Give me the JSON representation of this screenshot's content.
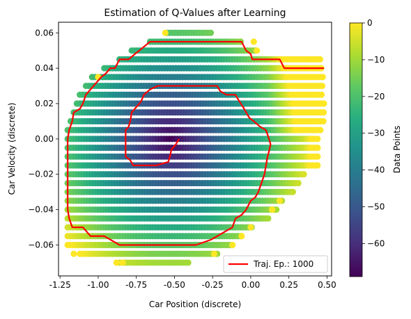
{
  "chart_data": {
    "type": "scatter",
    "title": "Estimation of Q-Values after Learning",
    "xlabel": "Car Position (discrete)",
    "ylabel": "Car Velocity (discrete)",
    "xlim": [
      -1.26,
      0.53
    ],
    "ylim": [
      -0.0775,
      0.066
    ],
    "x_ticks": [
      "-1.25",
      "-1.00",
      "-0.75",
      "-0.50",
      "-0.25",
      "0.00",
      "0.25",
      "0.50"
    ],
    "x_tick_values": [
      -1.25,
      -1.0,
      -0.75,
      -0.5,
      -0.25,
      0.0,
      0.25,
      0.5
    ],
    "y_ticks": [
      "0.06",
      "0.04",
      "0.02",
      "0.00",
      "−0.02",
      "−0.04",
      "−0.06"
    ],
    "y_tick_values": [
      0.06,
      0.04,
      0.02,
      0.0,
      -0.02,
      -0.04,
      -0.06
    ],
    "grid": false,
    "scatter": {
      "colormap": "viridis",
      "value_range": [
        -69,
        0
      ],
      "row_spacing": 0.005,
      "x_step": 0.018,
      "rows": [
        {
          "y": 0.06,
          "x_range": [
            -0.55,
            -0.25
          ]
        },
        {
          "y": 0.055,
          "x_range": [
            -0.66,
            -0.05
          ]
        },
        {
          "y": 0.05,
          "x_range": [
            -0.78,
            0.03
          ]
        },
        {
          "y": 0.045,
          "x_range": [
            -0.86,
            0.47
          ]
        },
        {
          "y": 0.04,
          "x_range": [
            -0.96,
            0.47
          ]
        },
        {
          "y": 0.035,
          "x_range": [
            -1.04,
            0.48
          ]
        },
        {
          "y": 0.03,
          "x_range": [
            -1.08,
            0.48
          ]
        },
        {
          "y": 0.025,
          "x_range": [
            -1.12,
            0.48
          ]
        },
        {
          "y": 0.02,
          "x_range": [
            -1.14,
            0.48
          ]
        },
        {
          "y": 0.015,
          "x_range": [
            -1.16,
            0.48
          ]
        },
        {
          "y": 0.01,
          "x_range": [
            -1.18,
            0.48
          ]
        },
        {
          "y": 0.005,
          "x_range": [
            -1.2,
            0.47
          ]
        },
        {
          "y": 0.0,
          "x_range": [
            -1.2,
            0.44
          ]
        },
        {
          "y": -0.005,
          "x_range": [
            -1.2,
            0.44
          ]
        },
        {
          "y": -0.01,
          "x_range": [
            -1.2,
            0.44
          ]
        },
        {
          "y": -0.015,
          "x_range": [
            -1.2,
            0.44
          ]
        },
        {
          "y": -0.02,
          "x_range": [
            -1.2,
            0.36
          ]
        },
        {
          "y": -0.025,
          "x_range": [
            -1.2,
            0.32
          ]
        },
        {
          "y": -0.03,
          "x_range": [
            -1.2,
            0.28
          ]
        },
        {
          "y": -0.035,
          "x_range": [
            -1.2,
            0.22
          ]
        },
        {
          "y": -0.04,
          "x_range": [
            -1.2,
            0.18
          ]
        },
        {
          "y": -0.045,
          "x_range": [
            -1.2,
            0.12
          ]
        },
        {
          "y": -0.05,
          "x_range": [
            -1.2,
            0.02
          ]
        },
        {
          "y": -0.055,
          "x_range": [
            -1.2,
            -0.06
          ]
        },
        {
          "y": -0.06,
          "x_range": [
            -1.2,
            -0.12
          ]
        },
        {
          "y": -0.065,
          "x_range": [
            -1.12,
            -0.22
          ]
        },
        {
          "y": -0.07,
          "x_range": [
            -0.86,
            -0.4
          ]
        }
      ],
      "edge_points": [
        {
          "x": -0.56,
          "y": 0.06
        },
        {
          "x": 0.02,
          "y": 0.055
        },
        {
          "x": 0.04,
          "y": 0.05
        },
        {
          "x": 0.38,
          "y": 0.045
        },
        {
          "x": -1.0,
          "y": 0.035
        },
        {
          "x": 0.19,
          "y": -0.035
        },
        {
          "x": 0.14,
          "y": -0.04
        },
        {
          "x": 0.0,
          "y": -0.05
        },
        {
          "x": -0.06,
          "y": -0.055
        },
        {
          "x": -0.12,
          "y": -0.06
        },
        {
          "x": -0.24,
          "y": -0.065
        },
        {
          "x": -1.16,
          "y": -0.065
        },
        {
          "x": -0.88,
          "y": -0.07
        },
        {
          "x": -0.84,
          "y": -0.07
        }
      ]
    },
    "trajectory": {
      "name": "Traj. Ep.: 1000",
      "color": "#ff0000",
      "points": [
        [
          -0.47,
          0.0
        ],
        [
          -0.49,
          -0.003
        ],
        [
          -0.52,
          -0.006
        ],
        [
          -0.53,
          -0.01
        ],
        [
          -0.54,
          -0.013
        ],
        [
          -0.58,
          -0.014
        ],
        [
          -0.62,
          -0.015
        ],
        [
          -0.7,
          -0.015
        ],
        [
          -0.77,
          -0.015
        ],
        [
          -0.79,
          -0.012
        ],
        [
          -0.82,
          -0.01
        ],
        [
          -0.82,
          -0.005
        ],
        [
          -0.82,
          0.0
        ],
        [
          -0.82,
          0.005
        ],
        [
          -0.8,
          0.007
        ],
        [
          -0.79,
          0.01
        ],
        [
          -0.78,
          0.015
        ],
        [
          -0.75,
          0.018
        ],
        [
          -0.72,
          0.021
        ],
        [
          -0.7,
          0.025
        ],
        [
          -0.66,
          0.028
        ],
        [
          -0.61,
          0.03
        ],
        [
          -0.52,
          0.03
        ],
        [
          -0.4,
          0.03
        ],
        [
          -0.3,
          0.03
        ],
        [
          -0.22,
          0.03
        ],
        [
          -0.2,
          0.027
        ],
        [
          -0.16,
          0.025
        ],
        [
          -0.1,
          0.025
        ],
        [
          -0.08,
          0.022
        ],
        [
          -0.05,
          0.018
        ],
        [
          -0.03,
          0.015
        ],
        [
          -0.01,
          0.012
        ],
        [
          0.02,
          0.01
        ],
        [
          0.06,
          0.007
        ],
        [
          0.1,
          0.005
        ],
        [
          0.12,
          0.0
        ],
        [
          0.13,
          -0.003
        ],
        [
          0.12,
          -0.007
        ],
        [
          0.11,
          -0.01
        ],
        [
          0.1,
          -0.015
        ],
        [
          0.09,
          -0.02
        ],
        [
          0.07,
          -0.025
        ],
        [
          0.05,
          -0.03
        ],
        [
          0.03,
          -0.033
        ],
        [
          0.0,
          -0.035
        ],
        [
          -0.03,
          -0.04
        ],
        [
          -0.06,
          -0.043
        ],
        [
          -0.1,
          -0.045
        ],
        [
          -0.12,
          -0.05
        ],
        [
          -0.18,
          -0.053
        ],
        [
          -0.22,
          -0.055
        ],
        [
          -0.26,
          -0.057
        ],
        [
          -0.36,
          -0.06
        ],
        [
          -0.5,
          -0.06
        ],
        [
          -0.66,
          -0.06
        ],
        [
          -0.86,
          -0.06
        ],
        [
          -0.92,
          -0.057
        ],
        [
          -0.96,
          -0.055
        ],
        [
          -1.05,
          -0.055
        ],
        [
          -1.1,
          -0.05
        ],
        [
          -1.17,
          -0.05
        ],
        [
          -1.19,
          -0.045
        ],
        [
          -1.2,
          -0.04
        ],
        [
          -1.2,
          -0.02
        ],
        [
          -1.2,
          0.0
        ],
        [
          -1.19,
          0.005
        ],
        [
          -1.17,
          0.01
        ],
        [
          -1.16,
          0.015
        ],
        [
          -1.12,
          0.017
        ],
        [
          -1.1,
          0.02
        ],
        [
          -1.08,
          0.025
        ],
        [
          -1.06,
          0.027
        ],
        [
          -1.03,
          0.03
        ],
        [
          -1.01,
          0.032
        ],
        [
          -0.98,
          0.035
        ],
        [
          -0.95,
          0.037
        ],
        [
          -0.92,
          0.04
        ],
        [
          -0.89,
          0.04
        ],
        [
          -0.86,
          0.045
        ],
        [
          -0.8,
          0.045
        ],
        [
          -0.76,
          0.048
        ],
        [
          -0.73,
          0.05
        ],
        [
          -0.66,
          0.055
        ],
        [
          -0.55,
          0.055
        ],
        [
          -0.4,
          0.055
        ],
        [
          -0.2,
          0.055
        ],
        [
          -0.06,
          0.055
        ],
        [
          -0.03,
          0.05
        ],
        [
          0.0,
          0.048
        ],
        [
          0.01,
          0.045
        ],
        [
          0.05,
          0.045
        ],
        [
          0.13,
          0.045
        ],
        [
          0.19,
          0.045
        ],
        [
          0.22,
          0.04
        ],
        [
          0.35,
          0.04
        ],
        [
          0.48,
          0.04
        ]
      ]
    },
    "legend": {
      "placement": "lower-right",
      "entries": [
        "Traj. Ep.: 1000"
      ]
    },
    "colorbar": {
      "label": "Data Points",
      "ticks": [
        "0",
        "−10",
        "−20",
        "−30",
        "−40",
        "−50",
        "−60"
      ],
      "tick_values": [
        0,
        -10,
        -20,
        -30,
        -40,
        -50,
        -60
      ],
      "range": [
        -69,
        0
      ]
    }
  }
}
